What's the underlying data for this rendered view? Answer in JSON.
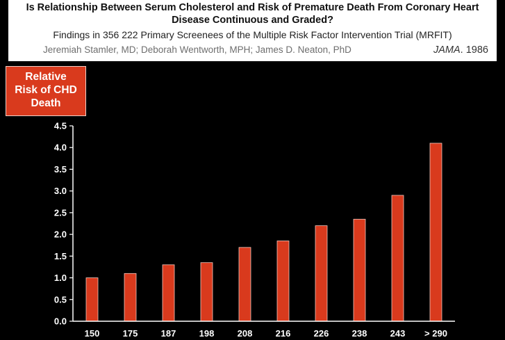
{
  "header": {
    "title_line1": "Is Relationship Between Serum Cholesterol and  Risk of Premature Death From Coronary Heart",
    "title_line2": "Disease Continuous and Graded?",
    "subtitle": "Findings in 356 222 Primary Screenees of the Multiple  Risk Factor Intervention Trial (MRFIT)",
    "authors": "Jeremiah Stamler, MD; Deborah Wentworth, MPH; James D. Neaton, PhD",
    "journal": "JAMA",
    "year": ". 1986"
  },
  "ylabel": {
    "line1": "Relative",
    "line2": "Risk of CHD",
    "line3": "Death"
  },
  "colors": {
    "bar": "#d93a1d",
    "label_box": "#d93a1d",
    "background": "#000000",
    "axis": "#ffffff"
  },
  "chart_data": {
    "type": "bar",
    "categories": [
      "150",
      "175",
      "187",
      "198",
      "208",
      "216",
      "226",
      "238",
      "243",
      "> 290"
    ],
    "values": [
      1.0,
      1.1,
      1.3,
      1.35,
      1.7,
      1.85,
      2.2,
      2.35,
      2.9,
      4.1
    ],
    "title": "",
    "xlabel": "",
    "ylabel": "Relative Risk of CHD Death",
    "ylim": [
      0,
      4.5
    ],
    "yticks": [
      "0.0",
      "0.5",
      "1.0",
      "1.5",
      "2.0",
      "2.5",
      "3.0",
      "3.5",
      "4.0",
      "4.5"
    ],
    "grid": false
  }
}
